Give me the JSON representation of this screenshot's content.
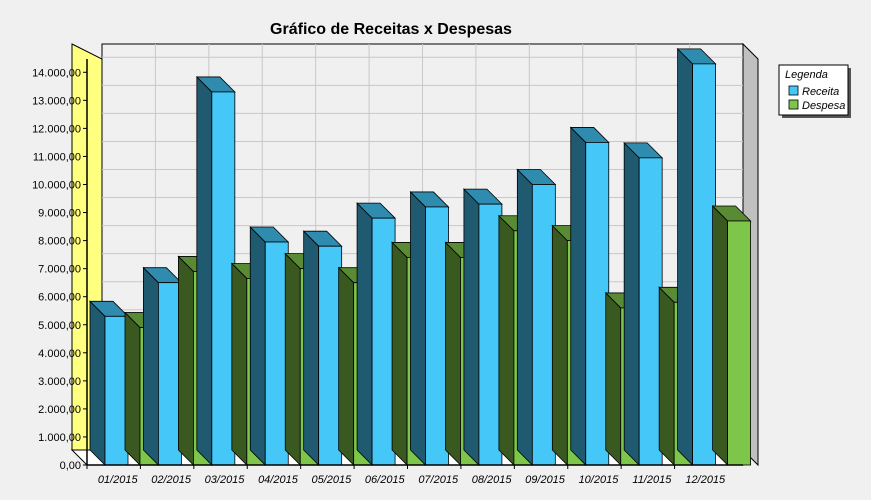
{
  "chart_data": {
    "type": "bar",
    "title": "Gráfico de Receitas x Despesas",
    "categories": [
      "01/2015",
      "02/2015",
      "03/2015",
      "04/2015",
      "05/2015",
      "06/2015",
      "07/2015",
      "08/2015",
      "09/2015",
      "10/2015",
      "11/2015",
      "12/2015"
    ],
    "series": [
      {
        "name": "Receita",
        "color": "#45c8f8",
        "values": [
          5300,
          6500,
          13300,
          7950,
          7800,
          8800,
          9200,
          9300,
          10000,
          11500,
          10950,
          14300
        ]
      },
      {
        "name": "Despesa",
        "color": "#7ec64a",
        "values": [
          4900,
          6900,
          6650,
          7000,
          6500,
          7400,
          7400,
          8350,
          8000,
          5600,
          5800,
          8700
        ]
      }
    ],
    "yticks": [
      "0,00",
      "1.000,00",
      "2.000,00",
      "3.000,00",
      "4.000,00",
      "5.000,00",
      "6.000,00",
      "7.000,00",
      "8.000,00",
      "9.000,00",
      "10.000,00",
      "11.000,00",
      "12.000,00",
      "13.000,00",
      "14.000,00"
    ],
    "ylim": [
      0,
      14000
    ],
    "grid": true,
    "legend": {
      "title": "Legenda",
      "placement": "right"
    }
  }
}
